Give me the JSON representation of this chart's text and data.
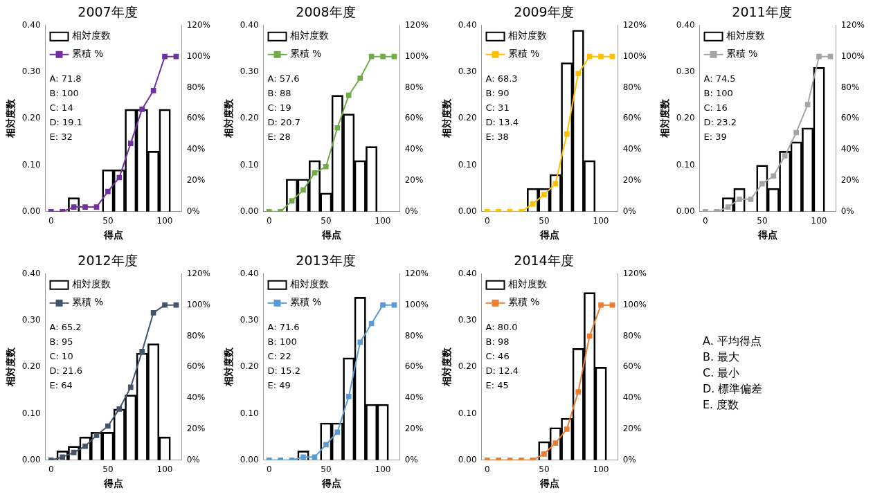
{
  "chart_data": [
    {
      "type": "bar",
      "title": "2007年度",
      "xlabel": "得点",
      "ylabel": "相対度数",
      "x": [
        0,
        10,
        20,
        30,
        40,
        50,
        60,
        70,
        80,
        90,
        100,
        110
      ],
      "xlim": [
        -5,
        115
      ],
      "xticks": [
        0,
        50,
        100
      ],
      "ylim": [
        0,
        0.4
      ],
      "yticks": [
        {
          "value": 0,
          "label": "0.00"
        },
        {
          "value": 0.1,
          "label": "0.10"
        },
        {
          "value": 0.2,
          "label": "0.20"
        },
        {
          "value": 0.3,
          "label": "0.30"
        },
        {
          "value": 0.4,
          "label": "0.40"
        }
      ],
      "y2lim": [
        0,
        120
      ],
      "y2ticks": [
        {
          "value": 0,
          "label": "0%"
        },
        {
          "value": 20,
          "label": "20%"
        },
        {
          "value": 40,
          "label": "40%"
        },
        {
          "value": 60,
          "label": "60%"
        },
        {
          "value": 80,
          "label": "80%"
        },
        {
          "value": 100,
          "label": "100%"
        },
        {
          "value": 120,
          "label": "120%"
        }
      ],
      "legend": "top left",
      "marker": "square",
      "annotations": [
        "A: 71.8",
        "B: 100",
        "C: 14",
        "D: 19.1",
        "E: 32"
      ],
      "series": [
        {
          "name": "相対度数",
          "type": "bar",
          "color": "#000000",
          "values": [
            0,
            0,
            0.03,
            0,
            0,
            0.09,
            0.09,
            0.22,
            0.22,
            0.13,
            0.22,
            0
          ]
        },
        {
          "name": "累積 %",
          "type": "line",
          "axis": "y2",
          "color": "#7030a0",
          "values": [
            0,
            0,
            3,
            3,
            3,
            13,
            22,
            44,
            66,
            78,
            100,
            100
          ]
        }
      ]
    },
    {
      "type": "bar",
      "title": "2008年度",
      "xlabel": "得点",
      "ylabel": "相対度数",
      "x": [
        0,
        10,
        20,
        30,
        40,
        50,
        60,
        70,
        80,
        90,
        100,
        110
      ],
      "xlim": [
        -5,
        115
      ],
      "xticks": [
        0,
        50,
        100
      ],
      "ylim": [
        0,
        0.4
      ],
      "yticks": [
        {
          "value": 0,
          "label": "0.00"
        },
        {
          "value": 0.1,
          "label": "0.10"
        },
        {
          "value": 0.2,
          "label": "0.20"
        },
        {
          "value": 0.3,
          "label": "0.30"
        },
        {
          "value": 0.4,
          "label": "0.40"
        }
      ],
      "y2lim": [
        0,
        120
      ],
      "y2ticks": [
        {
          "value": 0,
          "label": "0%"
        },
        {
          "value": 20,
          "label": "20%"
        },
        {
          "value": 40,
          "label": "40%"
        },
        {
          "value": 60,
          "label": "60%"
        },
        {
          "value": 80,
          "label": "80%"
        },
        {
          "value": 100,
          "label": "100%"
        },
        {
          "value": 120,
          "label": "120%"
        }
      ],
      "legend": "top left",
      "marker": "square",
      "annotations": [
        "A: 57.6",
        "B: 88",
        "C: 19",
        "D: 20.7",
        "E: 28"
      ],
      "series": [
        {
          "name": "相対度数",
          "type": "bar",
          "color": "#000000",
          "values": [
            0,
            0,
            0.07,
            0.07,
            0.11,
            0.04,
            0.25,
            0.21,
            0.11,
            0.14,
            0,
            0
          ]
        },
        {
          "name": "累積 %",
          "type": "line",
          "axis": "y2",
          "color": "#70ad47",
          "values": [
            0,
            0,
            7,
            14,
            25,
            29,
            54,
            75,
            86,
            100,
            100,
            100
          ]
        }
      ]
    },
    {
      "type": "bar",
      "title": "2009年度",
      "xlabel": "得点",
      "ylabel": "相対度数",
      "x": [
        0,
        10,
        20,
        30,
        40,
        50,
        60,
        70,
        80,
        90,
        100,
        110
      ],
      "xlim": [
        -5,
        115
      ],
      "xticks": [
        0,
        50,
        100
      ],
      "ylim": [
        0,
        0.4
      ],
      "yticks": [
        {
          "value": 0,
          "label": "0.00"
        },
        {
          "value": 0.1,
          "label": "0.10"
        },
        {
          "value": 0.2,
          "label": "0.20"
        },
        {
          "value": 0.3,
          "label": "0.30"
        },
        {
          "value": 0.4,
          "label": "0.40"
        }
      ],
      "y2lim": [
        0,
        120
      ],
      "y2ticks": [
        {
          "value": 0,
          "label": "0%"
        },
        {
          "value": 20,
          "label": "20%"
        },
        {
          "value": 40,
          "label": "40%"
        },
        {
          "value": 60,
          "label": "60%"
        },
        {
          "value": 80,
          "label": "80%"
        },
        {
          "value": 100,
          "label": "100%"
        },
        {
          "value": 120,
          "label": "120%"
        }
      ],
      "legend": "top left",
      "marker": "square",
      "annotations": [
        "A: 68.3",
        "B: 90",
        "C: 31",
        "D: 13.4",
        "E: 38"
      ],
      "series": [
        {
          "name": "相対度数",
          "type": "bar",
          "color": "#000000",
          "values": [
            0,
            0,
            0,
            0,
            0.05,
            0.05,
            0.08,
            0.32,
            0.39,
            0.11,
            0,
            0
          ]
        },
        {
          "name": "累積 %",
          "type": "line",
          "axis": "y2",
          "color": "#ffc000",
          "values": [
            0,
            0,
            0,
            0,
            5,
            11,
            18,
            50,
            89,
            100,
            100,
            100
          ]
        }
      ]
    },
    {
      "type": "bar",
      "title": "2011年度",
      "xlabel": "得点",
      "ylabel": "相対度数",
      "x": [
        0,
        10,
        20,
        30,
        40,
        50,
        60,
        70,
        80,
        90,
        100,
        110
      ],
      "xlim": [
        -5,
        115
      ],
      "xticks": [
        0,
        50,
        100
      ],
      "ylim": [
        0,
        0.4
      ],
      "yticks": [
        {
          "value": 0,
          "label": "0.00"
        },
        {
          "value": 0.1,
          "label": "0.10"
        },
        {
          "value": 0.2,
          "label": "0.20"
        },
        {
          "value": 0.3,
          "label": "0.30"
        },
        {
          "value": 0.4,
          "label": "0.40"
        }
      ],
      "y2lim": [
        0,
        120
      ],
      "y2ticks": [
        {
          "value": 0,
          "label": "0%"
        },
        {
          "value": 20,
          "label": "20%"
        },
        {
          "value": 40,
          "label": "40%"
        },
        {
          "value": 60,
          "label": "60%"
        },
        {
          "value": 80,
          "label": "80%"
        },
        {
          "value": 100,
          "label": "100%"
        },
        {
          "value": 120,
          "label": "120%"
        }
      ],
      "legend": "top left",
      "marker": "square",
      "annotations": [
        "A: 74.5",
        "B: 100",
        "C: 16",
        "D: 23.2",
        "E: 39"
      ],
      "series": [
        {
          "name": "相対度数",
          "type": "bar",
          "color": "#000000",
          "values": [
            0,
            0,
            0.03,
            0.05,
            0,
            0.1,
            0.05,
            0.13,
            0.15,
            0.18,
            0.31,
            0
          ]
        },
        {
          "name": "累積 %",
          "type": "line",
          "axis": "y2",
          "color": "#a5a5a5",
          "values": [
            0,
            0,
            3,
            8,
            8,
            18,
            23,
            36,
            51,
            69,
            100,
            100
          ]
        }
      ]
    },
    {
      "type": "bar",
      "title": "2012年度",
      "xlabel": "得点",
      "ylabel": "相対度数",
      "x": [
        0,
        10,
        20,
        30,
        40,
        50,
        60,
        70,
        80,
        90,
        100,
        110
      ],
      "xlim": [
        -5,
        115
      ],
      "xticks": [
        0,
        50,
        100
      ],
      "ylim": [
        0,
        0.4
      ],
      "yticks": [
        {
          "value": 0,
          "label": "0.00"
        },
        {
          "value": 0.1,
          "label": "0.10"
        },
        {
          "value": 0.2,
          "label": "0.20"
        },
        {
          "value": 0.3,
          "label": "0.30"
        },
        {
          "value": 0.4,
          "label": "0.40"
        }
      ],
      "y2lim": [
        0,
        120
      ],
      "y2ticks": [
        {
          "value": 0,
          "label": "0%"
        },
        {
          "value": 20,
          "label": "20%"
        },
        {
          "value": 40,
          "label": "40%"
        },
        {
          "value": 60,
          "label": "60%"
        },
        {
          "value": 80,
          "label": "80%"
        },
        {
          "value": 100,
          "label": "100%"
        },
        {
          "value": 120,
          "label": "120%"
        }
      ],
      "legend": "top left",
      "marker": "square",
      "annotations": [
        "A: 65.2",
        "B: 95",
        "C: 10",
        "D: 21.6",
        "E: 64"
      ],
      "series": [
        {
          "name": "相対度数",
          "type": "bar",
          "color": "#000000",
          "values": [
            0,
            0.02,
            0.03,
            0.05,
            0.06,
            0.06,
            0.11,
            0.14,
            0.23,
            0.25,
            0.05,
            0
          ]
        },
        {
          "name": "累積 %",
          "type": "line",
          "axis": "y2",
          "color": "#44546a",
          "values": [
            0,
            2,
            5,
            9,
            16,
            22,
            33,
            47,
            70,
            95,
            100,
            100
          ]
        }
      ]
    },
    {
      "type": "bar",
      "title": "2013年度",
      "xlabel": "得点",
      "ylabel": "相対度数",
      "x": [
        0,
        10,
        20,
        30,
        40,
        50,
        60,
        70,
        80,
        90,
        100,
        110
      ],
      "xlim": [
        -5,
        115
      ],
      "xticks": [
        0,
        50,
        100
      ],
      "ylim": [
        0,
        0.4
      ],
      "yticks": [
        {
          "value": 0,
          "label": "0.00"
        },
        {
          "value": 0.1,
          "label": "0.10"
        },
        {
          "value": 0.2,
          "label": "0.20"
        },
        {
          "value": 0.3,
          "label": "0.30"
        },
        {
          "value": 0.4,
          "label": "0.40"
        }
      ],
      "y2lim": [
        0,
        120
      ],
      "y2ticks": [
        {
          "value": 0,
          "label": "0%"
        },
        {
          "value": 20,
          "label": "20%"
        },
        {
          "value": 40,
          "label": "40%"
        },
        {
          "value": 60,
          "label": "60%"
        },
        {
          "value": 80,
          "label": "80%"
        },
        {
          "value": 100,
          "label": "100%"
        },
        {
          "value": 120,
          "label": "120%"
        }
      ],
      "legend": "top left",
      "marker": "square",
      "annotations": [
        "A: 71.6",
        "B: 100",
        "C: 22",
        "D: 15.2",
        "E: 49"
      ],
      "series": [
        {
          "name": "相対度数",
          "type": "bar",
          "color": "#000000",
          "values": [
            0,
            0,
            0,
            0.02,
            0,
            0.08,
            0.08,
            0.22,
            0.35,
            0.12,
            0.12,
            0
          ]
        },
        {
          "name": "累積 %",
          "type": "line",
          "axis": "y2",
          "color": "#5b9bd5",
          "values": [
            0,
            0,
            0,
            2,
            2,
            10,
            18,
            41,
            76,
            88,
            100,
            100
          ]
        }
      ]
    },
    {
      "type": "bar",
      "title": "2014年度",
      "xlabel": "得点",
      "ylabel": "相対度数",
      "x": [
        0,
        10,
        20,
        30,
        40,
        50,
        60,
        70,
        80,
        90,
        100,
        110
      ],
      "xlim": [
        -5,
        115
      ],
      "xticks": [
        0,
        50,
        100
      ],
      "ylim": [
        0,
        0.4
      ],
      "yticks": [
        {
          "value": 0,
          "label": "0.00"
        },
        {
          "value": 0.1,
          "label": "0.10"
        },
        {
          "value": 0.2,
          "label": "0.20"
        },
        {
          "value": 0.3,
          "label": "0.30"
        },
        {
          "value": 0.4,
          "label": "0.40"
        }
      ],
      "y2lim": [
        0,
        120
      ],
      "y2ticks": [
        {
          "value": 0,
          "label": "0%"
        },
        {
          "value": 20,
          "label": "20%"
        },
        {
          "value": 40,
          "label": "40%"
        },
        {
          "value": 60,
          "label": "60%"
        },
        {
          "value": 80,
          "label": "80%"
        },
        {
          "value": 100,
          "label": "100%"
        },
        {
          "value": 120,
          "label": "120%"
        }
      ],
      "legend": "top left",
      "marker": "square",
      "annotations": [
        "A: 80.0",
        "B: 98",
        "C: 46",
        "D: 12.4",
        "E: 45"
      ],
      "series": [
        {
          "name": "相対度数",
          "type": "bar",
          "color": "#000000",
          "values": [
            0,
            0,
            0,
            0,
            0,
            0.04,
            0.07,
            0.09,
            0.24,
            0.36,
            0.2,
            0
          ]
        },
        {
          "name": "累積 %",
          "type": "line",
          "axis": "y2",
          "color": "#ed7d31",
          "values": [
            0,
            0,
            0,
            0,
            0,
            4,
            11,
            20,
            44,
            80,
            100,
            100
          ]
        }
      ]
    },
    {
      "type": "other",
      "annotations": [
        "A. 平均得点",
        "B. 最大",
        "C. 最小",
        "D. 標準偏差",
        "E. 度数"
      ]
    }
  ]
}
